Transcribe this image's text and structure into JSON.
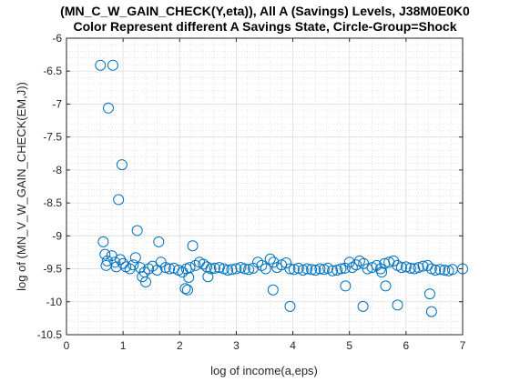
{
  "chart_data": {
    "type": "scatter",
    "title": "(MN_C_W_GAIN_CHECK(Y,eta)), All A (Savings) Levels, J38M0E0K0",
    "subtitle": "Color Represent different A Savings State, Circle-Group=Shock",
    "xlabel": "log of income(a,eps)",
    "ylabel": "log of (MN_V_W_GAIN_CHECK(EM,J))",
    "xlim": [
      0,
      7
    ],
    "ylim": [
      -10.5,
      -6
    ],
    "xticks": [
      "0",
      "1",
      "2",
      "3",
      "4",
      "5",
      "6",
      "7"
    ],
    "yticks": [
      "-6",
      "-6.5",
      "-7",
      "-7.5",
      "-8",
      "-8.5",
      "-9",
      "-9.5",
      "-10",
      "-10.5"
    ],
    "grid": "major and minor",
    "marker": "circle",
    "series_color": "#0072BD",
    "points": [
      [
        0.6,
        -6.41
      ],
      [
        0.82,
        -6.41
      ],
      [
        0.74,
        -7.06
      ],
      [
        0.98,
        -7.92
      ],
      [
        0.92,
        -8.45
      ],
      [
        1.25,
        -8.92
      ],
      [
        1.63,
        -9.09
      ],
      [
        0.65,
        -9.09
      ],
      [
        2.23,
        -9.15
      ],
      [
        0.68,
        -9.28
      ],
      [
        0.8,
        -9.3
      ],
      [
        1.22,
        -9.33
      ],
      [
        0.72,
        -9.38
      ],
      [
        0.86,
        -9.4
      ],
      [
        0.95,
        -9.36
      ],
      [
        1.0,
        -9.42
      ],
      [
        1.05,
        -9.47
      ],
      [
        1.12,
        -9.5
      ],
      [
        1.18,
        -9.44
      ],
      [
        1.3,
        -9.48
      ],
      [
        1.38,
        -9.55
      ],
      [
        1.45,
        -9.5
      ],
      [
        1.52,
        -9.46
      ],
      [
        1.6,
        -9.52
      ],
      [
        1.67,
        -9.4
      ],
      [
        1.75,
        -9.48
      ],
      [
        1.82,
        -9.5
      ],
      [
        1.9,
        -9.49
      ],
      [
        1.98,
        -9.52
      ],
      [
        2.05,
        -9.55
      ],
      [
        2.12,
        -9.5
      ],
      [
        2.18,
        -9.48
      ],
      [
        2.28,
        -9.45
      ],
      [
        2.35,
        -9.4
      ],
      [
        2.42,
        -9.43
      ],
      [
        2.48,
        -9.47
      ],
      [
        2.55,
        -9.5
      ],
      [
        2.62,
        -9.49
      ],
      [
        2.7,
        -9.48
      ],
      [
        2.78,
        -9.5
      ],
      [
        2.85,
        -9.52
      ],
      [
        2.92,
        -9.51
      ],
      [
        3.0,
        -9.5
      ],
      [
        3.08,
        -9.48
      ],
      [
        3.15,
        -9.5
      ],
      [
        3.22,
        -9.51
      ],
      [
        3.3,
        -9.49
      ],
      [
        3.38,
        -9.4
      ],
      [
        3.45,
        -9.45
      ],
      [
        3.52,
        -9.5
      ],
      [
        3.6,
        -9.35
      ],
      [
        3.66,
        -9.4
      ],
      [
        3.72,
        -9.48
      ],
      [
        3.8,
        -9.44
      ],
      [
        3.88,
        -9.41
      ],
      [
        3.95,
        -9.5
      ],
      [
        4.02,
        -9.51
      ],
      [
        4.1,
        -9.49
      ],
      [
        4.18,
        -9.52
      ],
      [
        4.25,
        -9.5
      ],
      [
        4.33,
        -9.51
      ],
      [
        4.4,
        -9.52
      ],
      [
        4.48,
        -9.5
      ],
      [
        4.55,
        -9.51
      ],
      [
        4.62,
        -9.49
      ],
      [
        4.7,
        -9.53
      ],
      [
        4.78,
        -9.52
      ],
      [
        4.85,
        -9.5
      ],
      [
        4.92,
        -9.49
      ],
      [
        5.0,
        -9.4
      ],
      [
        5.05,
        -9.48
      ],
      [
        5.12,
        -9.44
      ],
      [
        5.18,
        -9.38
      ],
      [
        5.25,
        -9.42
      ],
      [
        5.32,
        -9.5
      ],
      [
        5.4,
        -9.48
      ],
      [
        5.48,
        -9.45
      ],
      [
        5.55,
        -9.5
      ],
      [
        5.62,
        -9.42
      ],
      [
        5.7,
        -9.4
      ],
      [
        5.78,
        -9.38
      ],
      [
        5.85,
        -9.45
      ],
      [
        5.92,
        -9.48
      ],
      [
        6.0,
        -9.47
      ],
      [
        6.08,
        -9.49
      ],
      [
        6.15,
        -9.5
      ],
      [
        6.22,
        -9.48
      ],
      [
        6.3,
        -9.46
      ],
      [
        6.38,
        -9.45
      ],
      [
        6.45,
        -9.5
      ],
      [
        6.52,
        -9.52
      ],
      [
        6.6,
        -9.51
      ],
      [
        6.68,
        -9.52
      ],
      [
        6.75,
        -9.53
      ],
      [
        6.82,
        -9.51
      ],
      [
        7.0,
        -9.5
      ],
      [
        0.7,
        -9.45
      ],
      [
        0.88,
        -9.47
      ],
      [
        1.34,
        -9.62
      ],
      [
        1.4,
        -9.7
      ],
      [
        2.1,
        -9.8
      ],
      [
        2.14,
        -9.82
      ],
      [
        2.16,
        -9.63
      ],
      [
        2.5,
        -9.62
      ],
      [
        3.65,
        -9.82
      ],
      [
        3.95,
        -10.07
      ],
      [
        4.93,
        -9.76
      ],
      [
        5.24,
        -10.07
      ],
      [
        5.57,
        -9.55
      ],
      [
        5.64,
        -9.76
      ],
      [
        5.85,
        -10.05
      ],
      [
        6.42,
        -9.88
      ],
      [
        6.45,
        -10.15
      ]
    ]
  }
}
